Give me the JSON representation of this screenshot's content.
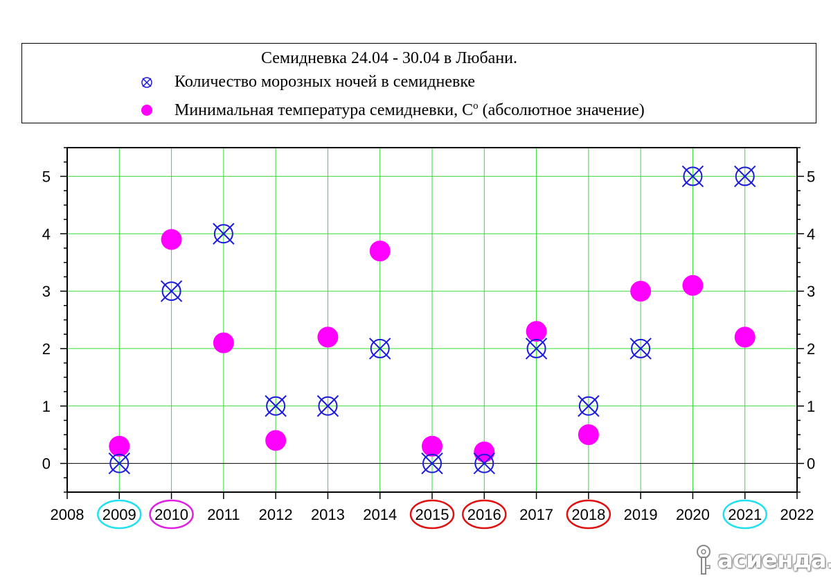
{
  "legend": {
    "title": "Семидневка 24.04 - 30.04 в Любани.",
    "series1_label": "Количество морозных ночей в семидневке",
    "series2_label_main": "Минимальная температура семидневки, С",
    "series2_label_sup": "o",
    "series2_label_tail": " (абсолютное значение)"
  },
  "watermark": {
    "text": "асиенда.ру"
  },
  "colors": {
    "grid": "#33dd33",
    "series1": "#1a1add",
    "series2": "#ff00ff",
    "highlight_cyan": "#22e0f0",
    "highlight_magenta": "#e020e0",
    "highlight_red": "#e01010"
  },
  "chart_data": {
    "type": "scatter",
    "x_ticks": [
      2008,
      2009,
      2010,
      2011,
      2012,
      2013,
      2014,
      2015,
      2016,
      2017,
      2018,
      2019,
      2020,
      2021,
      2022
    ],
    "y_ticks": [
      0,
      1,
      2,
      3,
      4,
      5
    ],
    "xlim": [
      2008,
      2022
    ],
    "ylim": [
      -0.5,
      5.5
    ],
    "grid": true,
    "series": [
      {
        "name": "Количество морозных ночей в семидневке",
        "marker": "circled-x",
        "points": [
          [
            2009,
            0
          ],
          [
            2010,
            3
          ],
          [
            2011,
            4
          ],
          [
            2012,
            1
          ],
          [
            2013,
            1
          ],
          [
            2014,
            2
          ],
          [
            2015,
            0
          ],
          [
            2016,
            0
          ],
          [
            2017,
            2
          ],
          [
            2018,
            1
          ],
          [
            2019,
            2
          ],
          [
            2020,
            5
          ],
          [
            2021,
            5
          ]
        ]
      },
      {
        "name": "Минимальная температура семидневки, Сo (абсолютное значение)",
        "marker": "filled-circle",
        "points": [
          [
            2009,
            0.3
          ],
          [
            2010,
            3.9
          ],
          [
            2011,
            2.1
          ],
          [
            2012,
            0.4
          ],
          [
            2013,
            2.2
          ],
          [
            2014,
            3.7
          ],
          [
            2015,
            0.3
          ],
          [
            2016,
            0.2
          ],
          [
            2017,
            2.3
          ],
          [
            2018,
            0.5
          ],
          [
            2019,
            3.0
          ],
          [
            2020,
            3.1
          ],
          [
            2021,
            2.2
          ]
        ]
      }
    ],
    "highlighted_years": [
      {
        "year": 2009,
        "color": "cyan"
      },
      {
        "year": 2010,
        "color": "magenta"
      },
      {
        "year": 2015,
        "color": "red"
      },
      {
        "year": 2016,
        "color": "red"
      },
      {
        "year": 2018,
        "color": "red"
      },
      {
        "year": 2021,
        "color": "cyan"
      }
    ]
  }
}
